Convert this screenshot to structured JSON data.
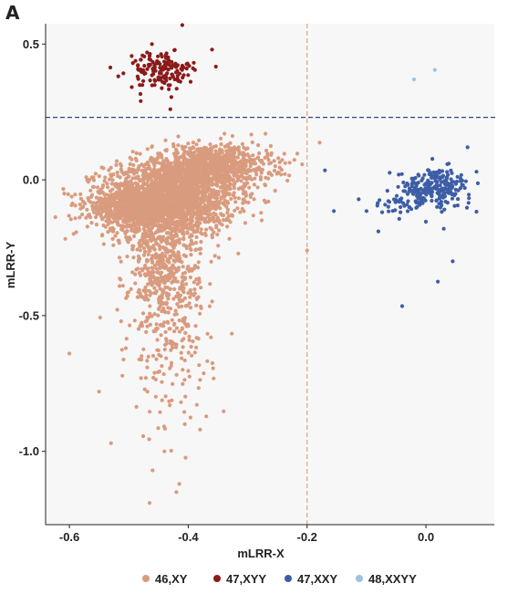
{
  "panel_label": "A",
  "chart_data": {
    "type": "scatter",
    "xlabel": "mLRR-X",
    "ylabel": "mLRR-Y",
    "xlim": [
      -0.64,
      0.115
    ],
    "ylim": [
      -1.27,
      0.575
    ],
    "x_ticks": [
      {
        "value": -0.6,
        "label": "-0.6"
      },
      {
        "value": -0.4,
        "label": "-0.4"
      },
      {
        "value": -0.2,
        "label": "-0.2"
      },
      {
        "value": 0.0,
        "label": "0.0"
      }
    ],
    "y_ticks": [
      {
        "value": 0.5,
        "label": "0.5"
      },
      {
        "value": 0.0,
        "label": "0.0"
      },
      {
        "value": -0.5,
        "label": "-0.5"
      },
      {
        "value": -1.0,
        "label": "-1.0"
      }
    ],
    "thresholds": {
      "vertical_x": -0.2,
      "horizontal_y": 0.23
    },
    "background": "#f7f7f7",
    "colors": {
      "46,XY": "#d99b7e",
      "47,XYY": "#8b1a1a",
      "47,XXY": "#3d5ea6",
      "48,XXYY": "#9ec3e0",
      "vline": "#e0a080",
      "hline": "#2c4a80"
    },
    "series": [
      {
        "name": "46,XY",
        "color": "#d99b7e",
        "clusters": [
          {
            "center": [
              -0.43,
              -0.07
            ],
            "spread": [
              0.055,
              0.07
            ],
            "n": 1800
          },
          {
            "center": [
              -0.36,
              0.05
            ],
            "spread": [
              0.05,
              0.04
            ],
            "n": 900
          },
          {
            "center": [
              -0.49,
              -0.1
            ],
            "spread": [
              0.04,
              0.04
            ],
            "n": 600
          },
          {
            "center": [
              -0.44,
              -0.33
            ],
            "spread": [
              0.03,
              0.12
            ],
            "n": 500
          },
          {
            "center": [
              -0.43,
              -0.65
            ],
            "spread": [
              0.035,
              0.15
            ],
            "n": 140
          }
        ],
        "outliers": [
          {
            "x": -0.6,
            "y": -0.64
          },
          {
            "x": -0.465,
            "y": -1.19
          },
          {
            "x": -0.46,
            "y": -1.07
          },
          {
            "x": -0.42,
            "y": -1.15
          },
          {
            "x": -0.415,
            "y": -1.12
          },
          {
            "x": -0.27,
            "y": 0.17
          },
          {
            "x": -0.55,
            "y": -0.78
          },
          {
            "x": -0.53,
            "y": -0.97
          },
          {
            "x": -0.505,
            "y": -0.62
          },
          {
            "x": -0.2,
            "y": -0.26
          },
          {
            "x": -0.44,
            "y": -1.0
          },
          {
            "x": -0.38,
            "y": -0.92
          }
        ]
      },
      {
        "name": "47,XYY",
        "color": "#8b1a1a",
        "clusters": [
          {
            "center": [
              -0.445,
              0.405
            ],
            "spread": [
              0.028,
              0.035
            ],
            "n": 150
          }
        ],
        "outliers": [
          {
            "x": -0.41,
            "y": 0.57
          },
          {
            "x": -0.43,
            "y": 0.26
          },
          {
            "x": -0.48,
            "y": 0.29
          },
          {
            "x": -0.36,
            "y": 0.48
          }
        ]
      },
      {
        "name": "47,XXY",
        "color": "#3d5ea6",
        "clusters": [
          {
            "center": [
              0.015,
              -0.03
            ],
            "spread": [
              0.03,
              0.035
            ],
            "n": 220
          },
          {
            "center": [
              -0.04,
              -0.08
            ],
            "spread": [
              0.025,
              0.025
            ],
            "n": 40
          }
        ],
        "outliers": [
          {
            "x": -0.17,
            "y": 0.035
          },
          {
            "x": -0.155,
            "y": -0.115
          },
          {
            "x": -0.1,
            "y": -0.115
          },
          {
            "x": -0.04,
            "y": -0.465
          },
          {
            "x": 0.045,
            "y": -0.3
          },
          {
            "x": 0.02,
            "y": -0.375
          },
          {
            "x": 0.07,
            "y": 0.12
          },
          {
            "x": 0.085,
            "y": 0.03
          },
          {
            "x": 0.03,
            "y": -0.18
          },
          {
            "x": -0.08,
            "y": -0.19
          }
        ]
      },
      {
        "name": "48,XXYY",
        "color": "#9ec3e0",
        "clusters": [],
        "outliers": [
          {
            "x": -0.02,
            "y": 0.37
          },
          {
            "x": 0.015,
            "y": 0.405
          }
        ]
      }
    ],
    "legend": {
      "placement": "bottom",
      "entries": [
        {
          "label": "46,XY",
          "color": "#d99b7e"
        },
        {
          "label": "47,XYY",
          "color": "#8b1a1a"
        },
        {
          "label": "47,XXY",
          "color": "#3d5ea6"
        },
        {
          "label": "48,XXYY",
          "color": "#9ec3e0"
        }
      ]
    },
    "grid": false
  }
}
